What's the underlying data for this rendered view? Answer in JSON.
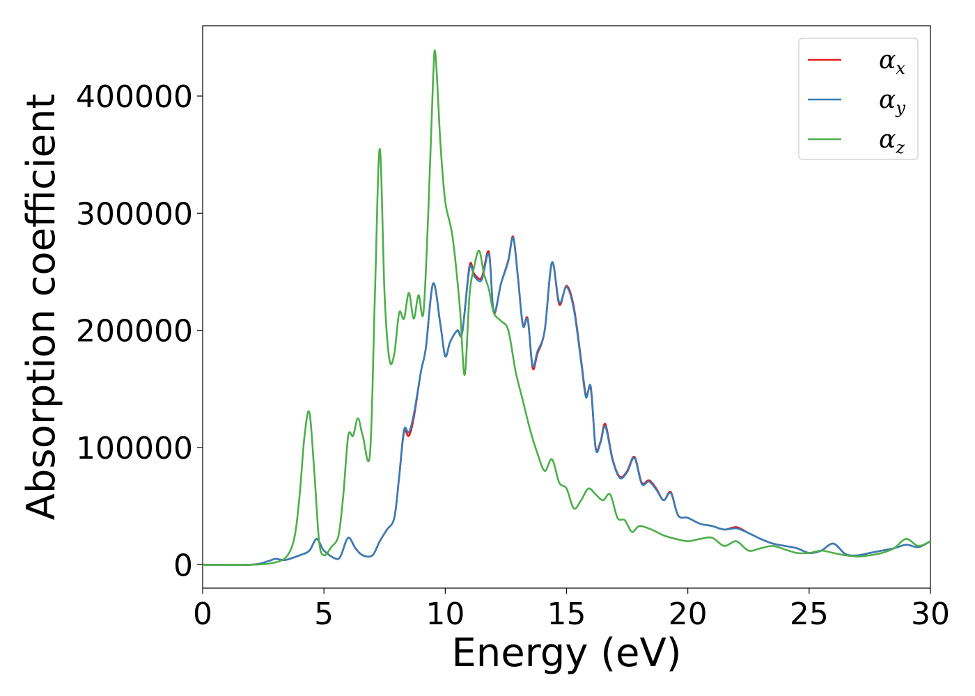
{
  "chart_data": {
    "type": "line",
    "title": "",
    "xlabel": "Energy (eV)",
    "ylabel": "Absorption coefficient",
    "xlim": [
      0,
      30
    ],
    "ylim": [
      -20000,
      460000
    ],
    "xticks": [
      0,
      5,
      10,
      15,
      20,
      25,
      30
    ],
    "yticks": [
      0,
      100000,
      200000,
      300000,
      400000
    ],
    "grid": false,
    "legend": {
      "placement": "top-right"
    },
    "series": [
      {
        "name": "α_x",
        "name_main": "α",
        "name_sub": "x",
        "color": "#e41a1c",
        "x": [
          0,
          2,
          2.7,
          3,
          3.4,
          4,
          4.4,
          4.7,
          5.0,
          5.5,
          5.7,
          6.0,
          6.3,
          6.6,
          7.0,
          7.3,
          7.6,
          7.9,
          8.1,
          8.3,
          8.5,
          8.7,
          9.0,
          9.2,
          9.5,
          9.8,
          10.0,
          10.2,
          10.5,
          10.7,
          11.0,
          11.2,
          11.5,
          11.8,
          12.0,
          12.3,
          12.6,
          12.8,
          13.0,
          13.2,
          13.4,
          13.6,
          13.8,
          14.1,
          14.4,
          14.7,
          15.0,
          15.3,
          15.6,
          15.8,
          16.0,
          16.2,
          16.4,
          16.6,
          16.9,
          17.2,
          17.5,
          17.8,
          18.1,
          18.4,
          18.7,
          19.0,
          19.3,
          19.6,
          20.0,
          20.5,
          21.0,
          21.5,
          22.0,
          22.5,
          23.0,
          23.5,
          24.0,
          24.5,
          25.0,
          25.5,
          26.0,
          26.5,
          27.0,
          27.5,
          28.0,
          28.5,
          29.0,
          29.5,
          30.0
        ],
        "values": [
          0,
          0,
          3000,
          5000,
          4000,
          8000,
          12000,
          22000,
          12000,
          5000,
          8000,
          23000,
          14000,
          8000,
          8000,
          20000,
          30000,
          40000,
          75000,
          113000,
          110000,
          125000,
          165000,
          185000,
          240000,
          205000,
          178000,
          190000,
          200000,
          198000,
          255000,
          248000,
          245000,
          267000,
          215000,
          240000,
          260000,
          280000,
          245000,
          205000,
          210000,
          168000,
          180000,
          200000,
          258000,
          222000,
          238000,
          220000,
          175000,
          145000,
          150000,
          100000,
          105000,
          120000,
          90000,
          75000,
          80000,
          92000,
          70000,
          72000,
          65000,
          55000,
          62000,
          42000,
          40000,
          35000,
          33000,
          30000,
          32000,
          27000,
          22000,
          18000,
          16000,
          14000,
          10000,
          12000,
          18000,
          9000,
          8000,
          10000,
          12000,
          14000,
          17000,
          15000,
          20000
        ]
      },
      {
        "name": "α_y",
        "name_main": "α",
        "name_sub": "y",
        "color": "#377eb8",
        "x": [
          0,
          2,
          2.7,
          3,
          3.4,
          4,
          4.4,
          4.7,
          5.0,
          5.5,
          5.7,
          6.0,
          6.3,
          6.6,
          7.0,
          7.3,
          7.6,
          7.9,
          8.1,
          8.3,
          8.5,
          8.7,
          9.0,
          9.2,
          9.5,
          9.8,
          10.0,
          10.2,
          10.5,
          10.7,
          11.0,
          11.2,
          11.5,
          11.8,
          12.0,
          12.3,
          12.6,
          12.8,
          13.0,
          13.2,
          13.4,
          13.6,
          13.8,
          14.1,
          14.4,
          14.7,
          15.0,
          15.3,
          15.6,
          15.8,
          16.0,
          16.2,
          16.4,
          16.6,
          16.9,
          17.2,
          17.5,
          17.8,
          18.1,
          18.4,
          18.7,
          19.0,
          19.3,
          19.6,
          20.0,
          20.5,
          21.0,
          21.5,
          22.0,
          22.5,
          23.0,
          23.5,
          24.0,
          24.5,
          25.0,
          25.5,
          26.0,
          26.5,
          27.0,
          27.5,
          28.0,
          28.5,
          29.0,
          29.5,
          30.0
        ],
        "values": [
          0,
          0,
          3000,
          5000,
          4000,
          8000,
          12000,
          22000,
          12000,
          5000,
          8000,
          23000,
          14000,
          8000,
          8000,
          20000,
          30000,
          40000,
          75000,
          115000,
          113000,
          128000,
          165000,
          185000,
          240000,
          205000,
          178000,
          190000,
          200000,
          198000,
          253000,
          246000,
          243000,
          265000,
          216000,
          240000,
          259000,
          279000,
          244000,
          204000,
          209000,
          170000,
          182000,
          200000,
          258000,
          224000,
          237000,
          218000,
          173000,
          143000,
          152000,
          99000,
          104000,
          118000,
          89000,
          74000,
          79000,
          91000,
          69000,
          71000,
          64000,
          55000,
          61000,
          42000,
          40000,
          35000,
          33000,
          30000,
          31000,
          27000,
          22000,
          18000,
          16000,
          14000,
          10000,
          12000,
          18000,
          9000,
          8000,
          10000,
          12000,
          14000,
          17000,
          15000,
          20000
        ]
      },
      {
        "name": "α_z",
        "name_main": "α",
        "name_sub": "z",
        "color": "#4daf4a",
        "x": [
          0,
          2,
          3,
          3.5,
          3.8,
          4.0,
          4.2,
          4.4,
          4.6,
          4.8,
          5.0,
          5.3,
          5.6,
          5.8,
          6.0,
          6.2,
          6.4,
          6.6,
          6.9,
          7.1,
          7.3,
          7.5,
          7.7,
          7.9,
          8.1,
          8.3,
          8.5,
          8.7,
          8.9,
          9.1,
          9.3,
          9.5,
          9.6,
          9.8,
          10.0,
          10.3,
          10.6,
          10.8,
          11.0,
          11.2,
          11.4,
          11.6,
          11.8,
          12.0,
          12.3,
          12.6,
          12.9,
          13.2,
          13.5,
          13.8,
          14.1,
          14.4,
          14.7,
          15.0,
          15.3,
          15.6,
          15.9,
          16.2,
          16.5,
          16.8,
          17.1,
          17.4,
          17.7,
          18.0,
          18.5,
          19.0,
          19.5,
          20.0,
          20.5,
          21.0,
          21.5,
          22.0,
          22.5,
          23.0,
          23.5,
          24.0,
          24.5,
          25.0,
          25.5,
          26.0,
          26.5,
          27.0,
          27.5,
          28.0,
          28.5,
          29.0,
          29.5,
          30.0
        ],
        "values": [
          0,
          0,
          2000,
          8000,
          25000,
          60000,
          110000,
          130000,
          80000,
          20000,
          8000,
          15000,
          25000,
          60000,
          110000,
          110000,
          125000,
          110000,
          95000,
          230000,
          355000,
          230000,
          175000,
          180000,
          215000,
          210000,
          232000,
          210000,
          230000,
          215000,
          300000,
          415000,
          435000,
          360000,
          310000,
          280000,
          220000,
          162000,
          230000,
          255000,
          268000,
          248000,
          235000,
          215000,
          208000,
          200000,
          165000,
          140000,
          115000,
          95000,
          80000,
          90000,
          70000,
          65000,
          48000,
          55000,
          65000,
          60000,
          55000,
          60000,
          40000,
          38000,
          28000,
          33000,
          30000,
          25000,
          22000,
          20000,
          22000,
          23000,
          16000,
          20000,
          12000,
          14000,
          16000,
          13000,
          10000,
          10000,
          12000,
          10000,
          8000,
          7000,
          8000,
          10000,
          14000,
          22000,
          16000,
          20000
        ]
      }
    ]
  }
}
